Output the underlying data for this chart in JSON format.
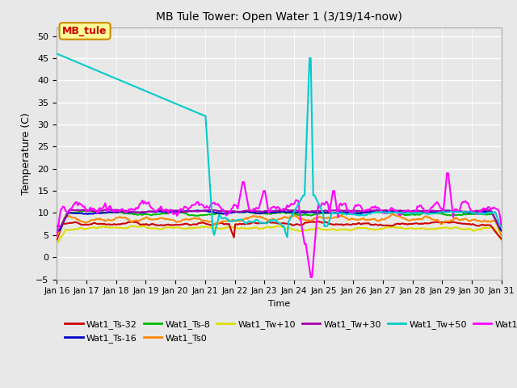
{
  "title": "MB Tule Tower: Open Water 1 (3/19/14-now)",
  "xlabel": "Time",
  "ylabel": "Temperature (C)",
  "ylim": [
    -5,
    52
  ],
  "yticks": [
    -5,
    0,
    5,
    10,
    15,
    20,
    25,
    30,
    35,
    40,
    45,
    50
  ],
  "xtick_labels": [
    "Jan 16",
    "Jan 17",
    "Jan 18",
    "Jan 19",
    "Jan 20",
    "Jan 21",
    "Jan 22",
    "Jan 23",
    "Jan 24",
    "Jan 25",
    "Jan 26",
    "Jan 27",
    "Jan 28",
    "Jan 29",
    "Jan 30",
    "Jan 31"
  ],
  "series": {
    "Wat1_Ts-32": {
      "color": "#cc0000",
      "lw": 1.5
    },
    "Wat1_Ts-16": {
      "color": "#0000cc",
      "lw": 1.5
    },
    "Wat1_Ts-8": {
      "color": "#00bb00",
      "lw": 1.5
    },
    "Wat1_Ts0": {
      "color": "#ff8800",
      "lw": 1.5
    },
    "Wat1_Tw+10": {
      "color": "#dddd00",
      "lw": 1.5
    },
    "Wat1_Tw+30": {
      "color": "#aa00aa",
      "lw": 1.5
    },
    "Wat1_Tw+50": {
      "color": "#00cccc",
      "lw": 1.5
    },
    "Wat1_Tw100": {
      "color": "#ff00ff",
      "lw": 1.5
    }
  },
  "annotation_box": {
    "text": "MB_tule",
    "facecolor": "#ffff99",
    "edgecolor": "#cc8800",
    "textcolor": "#cc0000"
  },
  "fig_bg": "#e8e8e8",
  "plot_bg": "#e8e8e8",
  "grid_color": "#ffffff"
}
